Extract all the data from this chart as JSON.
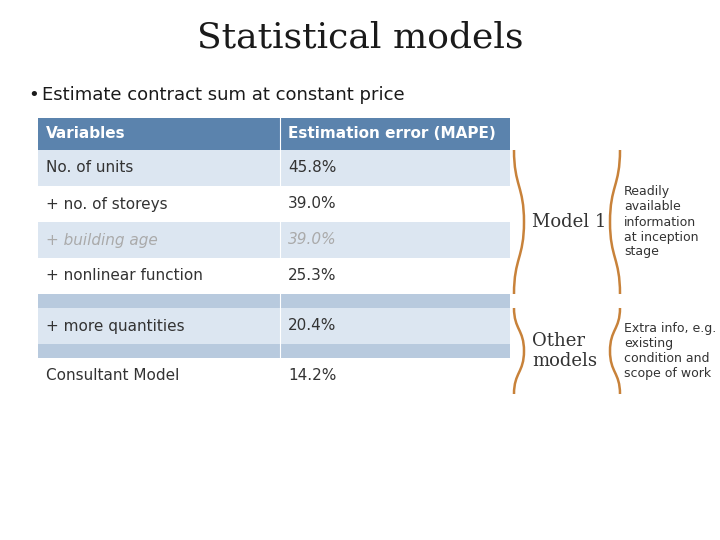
{
  "title": "Statistical models",
  "subtitle": "Estimate contract sum at constant price",
  "table_header": [
    "Variables",
    "Estimation error (MAPE)"
  ],
  "rows": [
    {
      "variable": "No. of units",
      "mape": "45.8%",
      "grayed": false,
      "spacer": false
    },
    {
      "variable": "+ no. of storeys",
      "mape": "39.0%",
      "grayed": false,
      "spacer": false
    },
    {
      "variable": "+ building age",
      "mape": "39.0%",
      "grayed": true,
      "spacer": false
    },
    {
      "variable": "+ nonlinear function",
      "mape": "25.3%",
      "grayed": false,
      "spacer": false
    },
    {
      "variable": "",
      "mape": "",
      "grayed": false,
      "spacer": true
    },
    {
      "variable": "+ more quantities",
      "mape": "20.4%",
      "grayed": false,
      "spacer": false
    },
    {
      "variable": "",
      "mape": "",
      "grayed": false,
      "spacer": true
    },
    {
      "variable": "Consultant Model",
      "mape": "14.2%",
      "grayed": false,
      "spacer": false
    }
  ],
  "header_bg": "#5B83AD",
  "header_text_color": "#FFFFFF",
  "row_bg_even": "#DCE6F1",
  "row_bg_odd": "#FFFFFF",
  "row_spacer_bg": "#B8CADE",
  "grayed_text_color": "#AAAAAA",
  "normal_text_color": "#333333",
  "bracket_color": "#C8823A",
  "model1_label": "Model 1",
  "other_label": "Other\nmodels",
  "model1_annotation": "Readily\navailable\ninformation\nat inception\nstage",
  "other_annotation": "Extra info, e.g.\nexisting\ncondition and\nscope of work",
  "title_fontsize": 26,
  "subtitle_fontsize": 13,
  "table_fontsize": 11,
  "annot_fontsize": 9,
  "label_fontsize": 13,
  "bg_color": "#FFFFFF"
}
